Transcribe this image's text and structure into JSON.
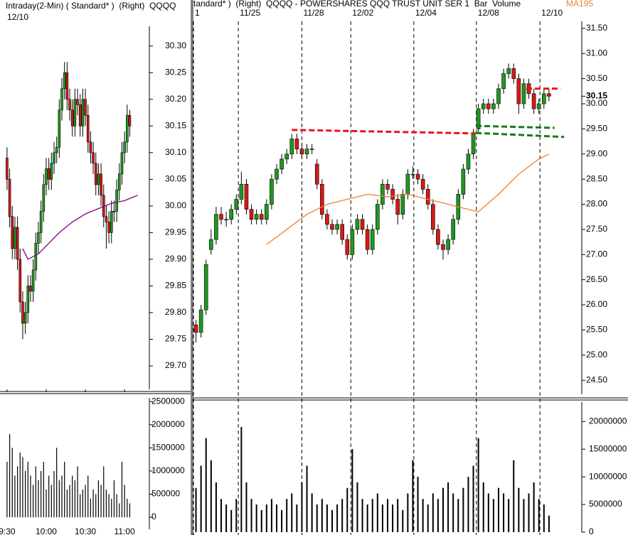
{
  "chart_data": [
    {
      "type": "candlestick",
      "title": "Intraday(2-Min) ( Standard* )  (Right)  QQQQ",
      "subtitle": "12/10",
      "up_color": "#1d9a1d",
      "down_color": "#d81818",
      "open": [
        30.09,
        30.05,
        29.98,
        29.92,
        29.96,
        29.9,
        29.82,
        29.78,
        29.8,
        29.85,
        29.84,
        29.88,
        29.93,
        29.95,
        29.99,
        30.04,
        30.07,
        30.05,
        30.08,
        30.1,
        30.11,
        30.18,
        30.22,
        30.25,
        30.2,
        30.18,
        30.15,
        30.2,
        30.19,
        30.15,
        30.2,
        30.17,
        30.12,
        30.1,
        30.08,
        30.04,
        30.06,
        30.02,
        29.98,
        29.97,
        29.95,
        29.99,
        29.99,
        30.03,
        30.06,
        30.1,
        30.12,
        30.17
      ],
      "high": [
        30.11,
        30.07,
        30.0,
        29.98,
        29.98,
        29.92,
        29.84,
        29.82,
        29.87,
        29.87,
        29.9,
        29.95,
        29.97,
        30.01,
        30.06,
        30.09,
        30.09,
        30.1,
        30.12,
        30.13,
        30.2,
        30.24,
        30.27,
        30.27,
        30.22,
        30.2,
        30.22,
        30.22,
        30.21,
        30.22,
        30.22,
        30.19,
        30.14,
        30.12,
        30.1,
        30.08,
        30.08,
        30.04,
        30.0,
        29.99,
        30.01,
        30.01,
        30.05,
        30.08,
        30.12,
        30.14,
        30.19,
        30.18
      ],
      "low": [
        30.03,
        29.96,
        29.9,
        29.9,
        29.88,
        29.8,
        29.75,
        29.76,
        29.78,
        29.82,
        29.82,
        29.86,
        29.91,
        29.93,
        29.97,
        30.02,
        30.03,
        30.03,
        30.06,
        30.08,
        30.09,
        30.16,
        30.2,
        30.18,
        30.16,
        30.13,
        30.13,
        30.17,
        30.13,
        30.13,
        30.15,
        30.1,
        30.08,
        30.06,
        30.02,
        30.02,
        30.0,
        29.96,
        29.92,
        29.93,
        29.93,
        29.97,
        29.97,
        30.01,
        30.04,
        30.08,
        30.1,
        30.13
      ],
      "close": [
        30.05,
        29.98,
        29.92,
        29.96,
        29.9,
        29.82,
        29.78,
        29.8,
        29.85,
        29.84,
        29.88,
        29.93,
        29.95,
        29.99,
        30.04,
        30.07,
        30.05,
        30.08,
        30.1,
        30.11,
        30.18,
        30.22,
        30.25,
        30.2,
        30.18,
        30.15,
        30.2,
        30.19,
        30.15,
        30.2,
        30.17,
        30.12,
        30.1,
        30.08,
        30.04,
        30.06,
        30.02,
        29.98,
        29.97,
        29.95,
        29.99,
        29.99,
        30.03,
        30.06,
        30.1,
        30.12,
        30.17,
        30.15
      ],
      "series": [
        {
          "color": "#800080",
          "x": [
            6,
            8,
            12,
            16,
            20,
            25,
            30,
            35,
            40,
            45,
            50
          ],
          "values": [
            29.92,
            29.9,
            29.91,
            29.93,
            29.95,
            29.97,
            29.985,
            29.995,
            30.005,
            30.01,
            30.02
          ]
        }
      ],
      "xlim": [
        -2.7,
        54.5
      ],
      "xticks": [
        {
          "value": 0,
          "label": "9:30"
        },
        {
          "value": 15,
          "label": "10:00"
        },
        {
          "value": 30,
          "label": "10:30"
        },
        {
          "value": 45,
          "label": "11:00"
        }
      ],
      "xgrid": false,
      "ylim": [
        29.656,
        30.337
      ],
      "yticks": [
        {
          "value": 29.7,
          "label": "29.70"
        },
        {
          "value": 29.75,
          "label": "29.75"
        },
        {
          "value": 29.8,
          "label": "29.80"
        },
        {
          "value": 29.85,
          "label": "29.85"
        },
        {
          "value": 29.9,
          "label": "29.90"
        },
        {
          "value": 29.95,
          "label": "29.95"
        },
        {
          "value": 30,
          "label": "30.00"
        },
        {
          "value": 30.05,
          "label": "30.05"
        },
        {
          "value": 30.1,
          "label": "30.10"
        },
        {
          "value": 30.15,
          "label": "30.15"
        },
        {
          "value": 30.2,
          "label": "30.20"
        },
        {
          "value": 30.25,
          "label": "30.25"
        },
        {
          "value": 30.3,
          "label": "30.30"
        }
      ]
    },
    {
      "type": "bar",
      "color": "#000000",
      "values": [
        1200000,
        1800000,
        1500000,
        900000,
        1100000,
        1400000,
        1300000,
        1000000,
        1200000,
        900000,
        700000,
        1100000,
        800000,
        1000000,
        1200000,
        600000,
        900000,
        700000,
        1000000,
        1500000,
        800000,
        900000,
        1200000,
        600000,
        700000,
        900000,
        800000,
        1100000,
        500000,
        600000,
        700000,
        900000,
        400000,
        600000,
        500000,
        800000,
        700000,
        1100000,
        600000,
        500000,
        400000,
        800000,
        500000,
        300000,
        1200000,
        700000,
        400000,
        300000
      ],
      "xlim": [
        -2.7,
        54.5
      ],
      "ylim": [
        -260000,
        2580000
      ],
      "yticks": [
        0,
        500000,
        1000000,
        1500000,
        2000000,
        2500000
      ]
    },
    {
      "type": "candlestick",
      "title": "tandard* )  (Right)  QQQQ - POWERSHARES QQQ TRUST UNIT SER 1  Bar  Volume",
      "up_color": "#1d9a1d",
      "down_color": "#d81818",
      "open": [
        25.6,
        25.45,
        25.9,
        27.1,
        27.3,
        27.8,
        27.7,
        27.7,
        27.9,
        28.1,
        28.4,
        27.9,
        27.7,
        27.8,
        27.7,
        28.0,
        28.5,
        28.7,
        28.9,
        29.0,
        29.3,
        29.1,
        29.0,
        29.1,
        28.8,
        28.4,
        27.8,
        27.6,
        27.5,
        27.6,
        27.3,
        27.0,
        27.5,
        27.7,
        27.5,
        27.1,
        27.5,
        28.0,
        28.4,
        28.3,
        28.1,
        27.8,
        28.2,
        28.6,
        28.6,
        28.5,
        28.3,
        28.0,
        27.5,
        27.2,
        27.1,
        27.3,
        27.7,
        28.2,
        28.7,
        29.0,
        29.5,
        29.9,
        30.0,
        29.9,
        30.0,
        30.3,
        30.6,
        30.7,
        30.5,
        30.0,
        30.4,
        30.2,
        29.9,
        30.0,
        30.2
      ],
      "high": [
        25.7,
        26.0,
        26.9,
        27.5,
        27.95,
        27.95,
        27.85,
        28.0,
        28.2,
        28.65,
        28.5,
        28.0,
        27.9,
        27.9,
        28.1,
        28.6,
        28.8,
        29.0,
        29.1,
        29.4,
        29.4,
        29.2,
        29.2,
        29.2,
        28.9,
        28.5,
        27.9,
        27.7,
        27.7,
        27.7,
        27.4,
        27.6,
        27.8,
        27.8,
        27.6,
        27.6,
        28.1,
        28.5,
        28.5,
        28.4,
        28.2,
        28.3,
        28.7,
        28.75,
        28.7,
        28.6,
        28.4,
        28.1,
        27.6,
        27.3,
        27.4,
        27.8,
        28.3,
        28.8,
        29.1,
        29.5,
        30.0,
        30.1,
        30.1,
        30.1,
        30.4,
        30.7,
        30.8,
        30.8,
        30.6,
        30.5,
        30.5,
        30.3,
        30.1,
        30.3,
        30.3
      ],
      "low": [
        25.25,
        25.35,
        25.8,
        27.0,
        27.2,
        27.6,
        27.55,
        27.6,
        27.8,
        28.0,
        27.8,
        27.6,
        27.6,
        27.6,
        27.6,
        27.9,
        28.4,
        28.6,
        28.8,
        28.9,
        29.0,
        28.9,
        28.9,
        29.0,
        28.3,
        27.7,
        27.5,
        27.4,
        27.4,
        27.2,
        26.9,
        26.9,
        27.4,
        27.4,
        27.0,
        27.0,
        27.4,
        27.9,
        28.2,
        28.0,
        27.6,
        27.7,
        28.1,
        28.5,
        28.4,
        28.2,
        27.9,
        27.4,
        27.1,
        26.9,
        27.0,
        27.2,
        27.6,
        28.1,
        28.6,
        28.9,
        29.4,
        29.8,
        29.8,
        29.8,
        29.9,
        30.2,
        30.5,
        30.4,
        29.8,
        29.9,
        30.1,
        29.8,
        29.8,
        29.9,
        30.05
      ],
      "close": [
        25.45,
        25.9,
        26.8,
        27.3,
        27.8,
        27.7,
        27.7,
        27.9,
        28.1,
        28.4,
        27.9,
        27.7,
        27.8,
        27.7,
        28.0,
        28.5,
        28.7,
        28.9,
        29.0,
        29.3,
        29.1,
        29.0,
        29.1,
        29.1,
        28.4,
        27.8,
        27.6,
        27.5,
        27.6,
        27.3,
        27.0,
        27.5,
        27.7,
        27.5,
        27.1,
        27.5,
        28.0,
        28.4,
        28.3,
        28.1,
        27.8,
        28.2,
        28.6,
        28.6,
        28.5,
        28.3,
        28.0,
        27.5,
        27.2,
        27.1,
        27.3,
        27.7,
        28.2,
        28.7,
        29.0,
        29.4,
        29.9,
        30.0,
        29.9,
        30.0,
        30.3,
        30.6,
        30.7,
        30.5,
        30.0,
        30.4,
        30.2,
        29.9,
        30.0,
        30.2,
        30.15
      ],
      "last_value": 30.15,
      "series": [
        {
          "name": "MA195",
          "color": "#f08030",
          "x": [
            14,
            18,
            22,
            26,
            30,
            34,
            38,
            42,
            46,
            50,
            54,
            56,
            60,
            64,
            68,
            70
          ],
          "values": [
            27.2,
            27.5,
            27.8,
            28.0,
            28.1,
            28.2,
            28.15,
            28.2,
            28.1,
            28.0,
            27.9,
            27.85,
            28.2,
            28.6,
            28.9,
            29.0
          ]
        }
      ],
      "trend_lines": [
        {
          "color": "#e8141a",
          "x": [
            19,
            55.5
          ],
          "values": [
            29.48,
            29.41
          ]
        },
        {
          "color": "#e8141a",
          "x": [
            65.5,
            72.3
          ],
          "values": [
            30.3,
            30.3
          ]
        },
        {
          "color": "#1a7a1a",
          "x": [
            55.5,
            71.1
          ],
          "values": [
            29.56,
            29.52
          ]
        },
        {
          "color": "#1a7a1a",
          "x": [
            55.5,
            73
          ],
          "values": [
            29.42,
            29.34
          ]
        }
      ],
      "xlim": [
        -0.5,
        76.5
      ],
      "xticks": [
        {
          "value": -0.5,
          "label": "1"
        },
        {
          "value": 8.4,
          "label": "11/25"
        },
        {
          "value": 21,
          "label": "11/28"
        },
        {
          "value": 30.7,
          "label": "12/02"
        },
        {
          "value": 43.2,
          "label": "12/04"
        },
        {
          "value": 55.6,
          "label": "12/08"
        },
        {
          "value": 68.2,
          "label": "12/10"
        }
      ],
      "xgrid": true,
      "ylim": [
        24.22,
        31.64
      ],
      "yticks": [
        {
          "value": 24.5,
          "label": "24.50"
        },
        {
          "value": 25,
          "label": "25.00"
        },
        {
          "value": 25.5,
          "label": "25.50"
        },
        {
          "value": 26,
          "label": "26.00"
        },
        {
          "value": 26.5,
          "label": "26.50"
        },
        {
          "value": 27,
          "label": "27.00"
        },
        {
          "value": 27.5,
          "label": "27.50"
        },
        {
          "value": 28,
          "label": "28.00"
        },
        {
          "value": 28.5,
          "label": "28.50"
        },
        {
          "value": 29,
          "label": "29.00"
        },
        {
          "value": 29.5,
          "label": "29.50"
        },
        {
          "value": 30,
          "label": "30.00"
        },
        {
          "value": 30.5,
          "label": "30.50"
        },
        {
          "value": 31,
          "label": "31.00"
        },
        {
          "value": 31.5,
          "label": "31.50"
        }
      ]
    },
    {
      "type": "bar",
      "color": "#000000",
      "values": [
        8000000,
        12000000,
        17000000,
        13000000,
        9000000,
        6000000,
        5000000,
        4000000,
        6000000,
        19000000,
        9000000,
        6000000,
        5000000,
        4000000,
        5000000,
        6000000,
        5000000,
        4000000,
        6000000,
        7000000,
        5000000,
        9000000,
        12000000,
        7000000,
        5000000,
        6000000,
        5000000,
        4000000,
        5000000,
        6000000,
        8000000,
        15000000,
        9000000,
        6000000,
        5000000,
        6000000,
        7000000,
        5000000,
        6000000,
        5000000,
        6000000,
        4000000,
        7000000,
        13000000,
        10000000,
        6000000,
        5000000,
        7000000,
        6000000,
        8000000,
        9000000,
        7000000,
        6000000,
        8000000,
        10000000,
        12000000,
        17000000,
        9000000,
        7000000,
        6000000,
        8000000,
        7000000,
        6000000,
        13000000,
        8000000,
        6000000,
        7000000,
        9000000,
        6000000,
        5000000,
        3000000
      ],
      "xlim": [
        -0.5,
        76.5
      ],
      "ylim": [
        0,
        23500000
      ],
      "yticks": [
        0,
        5000000,
        10000000,
        15000000,
        20000000
      ]
    }
  ]
}
